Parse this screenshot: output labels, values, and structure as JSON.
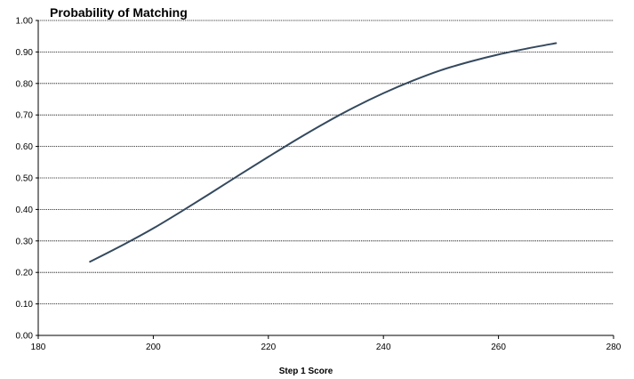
{
  "chart_data": {
    "type": "line",
    "title": "Probability of Matching",
    "xlabel": "Step 1 Score",
    "ylabel": "",
    "xlim": [
      180,
      280
    ],
    "ylim": [
      0,
      1
    ],
    "x_ticks": [
      180,
      200,
      220,
      240,
      260,
      280
    ],
    "y_ticks": [
      "0.00",
      "0.10",
      "0.20",
      "0.30",
      "0.40",
      "0.50",
      "0.60",
      "0.70",
      "0.80",
      "0.90",
      "1.00"
    ],
    "grid": "horizontal",
    "series": [
      {
        "color": "#34495e",
        "x": [
          189,
          195,
          200,
          205,
          210,
          215,
          220,
          225,
          230,
          235,
          240,
          245,
          250,
          255,
          260,
          265,
          270
        ],
        "y": [
          0.234,
          0.29,
          0.34,
          0.395,
          0.452,
          0.51,
          0.567,
          0.623,
          0.676,
          0.725,
          0.769,
          0.808,
          0.842,
          0.869,
          0.892,
          0.911,
          0.928
        ]
      }
    ]
  }
}
